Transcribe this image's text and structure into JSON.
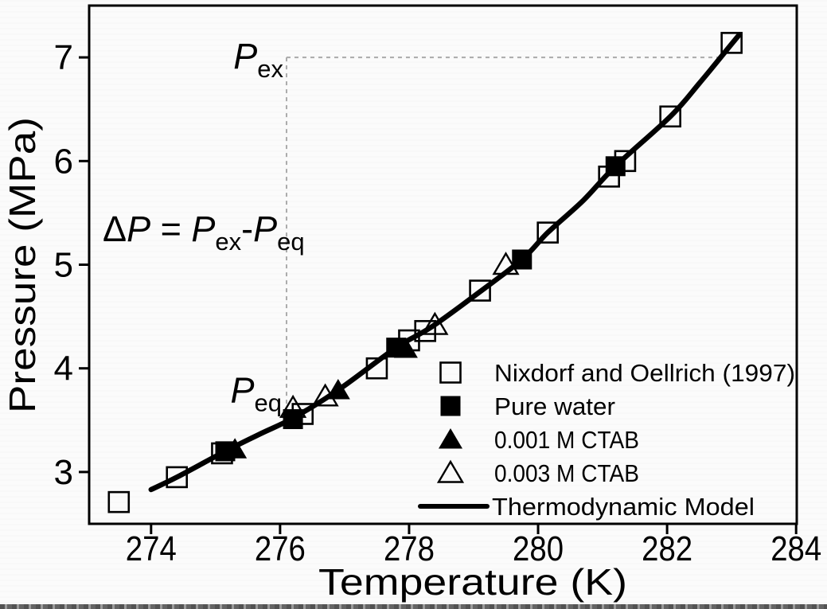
{
  "figure": {
    "background": "#fbfbfb",
    "ink_color": "#000000",
    "dashed_color": "#ababab"
  },
  "chart_data": {
    "type": "scatter",
    "title": "",
    "xlabel": "Temperature (K)",
    "ylabel": "Pressure (MPa)",
    "xlim": [
      273.04,
      284.01
    ],
    "ylim": [
      2.5,
      7.5
    ],
    "x_ticks": [
      "274",
      "276",
      "278",
      "280",
      "282",
      "284"
    ],
    "x_tick_values": [
      274,
      276,
      278,
      280,
      282,
      284
    ],
    "y_ticks": [
      "3",
      "4",
      "5",
      "6",
      "7"
    ],
    "y_tick_values": [
      3,
      4,
      5,
      6,
      7
    ],
    "grid": false,
    "legend_position": "inside-bottom-right",
    "series": [
      {
        "name": "Nixdorf and Oellrich (1997)",
        "marker": "square-open",
        "points": [
          [
            273.5,
            2.71
          ],
          [
            274.4,
            2.95
          ],
          [
            275.1,
            3.18
          ],
          [
            276.35,
            3.56
          ],
          [
            277.5,
            4.0
          ],
          [
            278.0,
            4.27
          ],
          [
            278.25,
            4.36
          ],
          [
            279.1,
            4.75
          ],
          [
            280.15,
            5.31
          ],
          [
            281.1,
            5.85
          ],
          [
            281.35,
            6.0
          ],
          [
            282.05,
            6.43
          ],
          [
            283.0,
            7.14
          ]
        ]
      },
      {
        "name": "Pure water",
        "marker": "square-filled",
        "points": [
          [
            275.15,
            3.2
          ],
          [
            276.2,
            3.51
          ],
          [
            277.8,
            4.2
          ],
          [
            279.75,
            5.05
          ],
          [
            281.2,
            5.95
          ]
        ]
      },
      {
        "name": "0.001 M CTAB",
        "marker": "triangle-filled",
        "points": [
          [
            275.3,
            3.22
          ],
          [
            276.9,
            3.79
          ],
          [
            277.95,
            4.19
          ]
        ]
      },
      {
        "name": "0.003 M CTAB",
        "marker": "triangle-open",
        "points": [
          [
            276.2,
            3.62
          ],
          [
            276.7,
            3.73
          ],
          [
            278.4,
            4.42
          ],
          [
            279.5,
            5.0
          ]
        ]
      },
      {
        "name": "Thermodynamic Model",
        "marker": "line",
        "points": [
          [
            274.0,
            2.83
          ],
          [
            274.4,
            2.95
          ],
          [
            275.15,
            3.2
          ],
          [
            275.7,
            3.37
          ],
          [
            276.2,
            3.52
          ],
          [
            276.9,
            3.79
          ],
          [
            277.8,
            4.2
          ],
          [
            278.35,
            4.4
          ],
          [
            279.1,
            4.74
          ],
          [
            279.75,
            5.05
          ],
          [
            280.15,
            5.31
          ],
          [
            280.7,
            5.62
          ],
          [
            281.2,
            5.95
          ],
          [
            282.05,
            6.43
          ],
          [
            282.5,
            6.75
          ],
          [
            283.0,
            7.13
          ],
          [
            283.12,
            7.22
          ]
        ]
      }
    ],
    "annotations": {
      "p_ex_value": 7.0,
      "p_eq_value": 3.54,
      "vline_temperature": 276.1,
      "hline_temperature_end": 282.8,
      "labels": {
        "p_ex": [
          {
            "text": "P",
            "italic": true
          },
          {
            "text": "ex",
            "sub": true
          }
        ],
        "p_eq": [
          {
            "text": "P",
            "italic": true
          },
          {
            "text": "eq",
            "sub": true
          }
        ],
        "delta_formula": [
          {
            "text": "Δ"
          },
          {
            "text": "P",
            "italic": true
          },
          {
            "text": " = "
          },
          {
            "text": "P",
            "italic": true
          },
          {
            "text": "ex",
            "sub": true
          },
          {
            "text": "-"
          },
          {
            "text": "P",
            "italic": true
          },
          {
            "text": "eq",
            "sub": true
          }
        ]
      }
    }
  }
}
